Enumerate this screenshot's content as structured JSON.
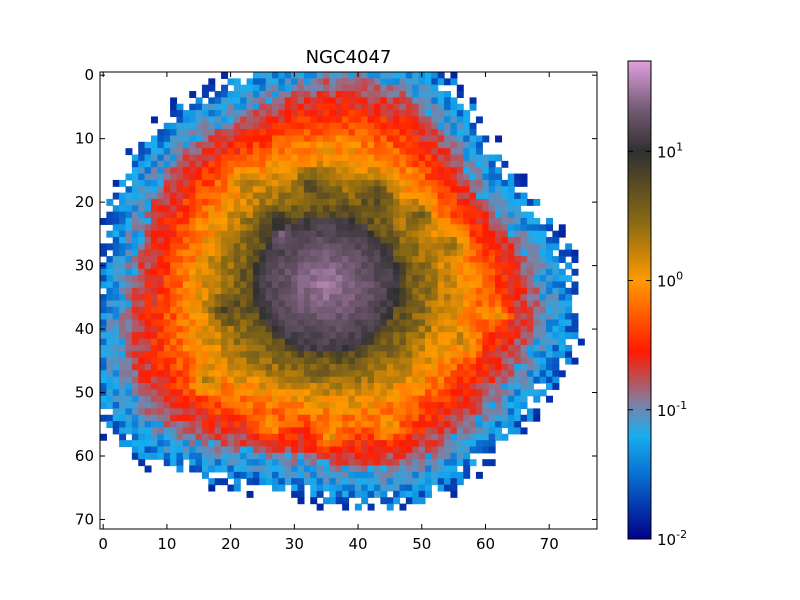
{
  "chart_data": {
    "type": "heatmap",
    "title": "NGC4047",
    "xlabel": "",
    "ylabel": "",
    "grid_shape": {
      "cols": 78,
      "rows": 72
    },
    "xlim": [
      -0.5,
      77.5
    ],
    "ylim": [
      71.5,
      -0.5
    ],
    "y_axis_inverted": true,
    "x_ticks": [
      0,
      10,
      20,
      30,
      40,
      50,
      60,
      70
    ],
    "y_ticks": [
      0,
      10,
      20,
      30,
      40,
      50,
      60,
      70
    ],
    "colorbar": {
      "scale": "log",
      "range": [
        0.01,
        50
      ],
      "ticks": [
        {
          "value": 0.01,
          "base": "10",
          "exp": "-2"
        },
        {
          "value": 0.1,
          "base": "10",
          "exp": "-1"
        },
        {
          "value": 1,
          "base": "10",
          "exp": "0"
        },
        {
          "value": 10,
          "base": "10",
          "exp": "1"
        }
      ],
      "colormap_stops": [
        {
          "log_value": -2.0,
          "color": "#00008b"
        },
        {
          "log_value": -1.5,
          "color": "#0a6fd0"
        },
        {
          "log_value": -1.2,
          "color": "#18aef0"
        },
        {
          "log_value": -0.95,
          "color": "#7f7fa3"
        },
        {
          "log_value": -0.55,
          "color": "#ff1a00"
        },
        {
          "log_value": 0.0,
          "color": "#ff9900"
        },
        {
          "log_value": 0.45,
          "color": "#8a6a14"
        },
        {
          "log_value": 1.0,
          "color": "#303030"
        },
        {
          "log_value": 1.35,
          "color": "#7a5f7a"
        },
        {
          "log_value": 1.7,
          "color": "#e0a0e0"
        }
      ]
    },
    "model": {
      "description": "Radially decreasing intensity with central bright core and ring knots",
      "center": [
        35,
        33
      ],
      "core_log_peak": 1.4,
      "outer_edge_radius": 36
    }
  }
}
